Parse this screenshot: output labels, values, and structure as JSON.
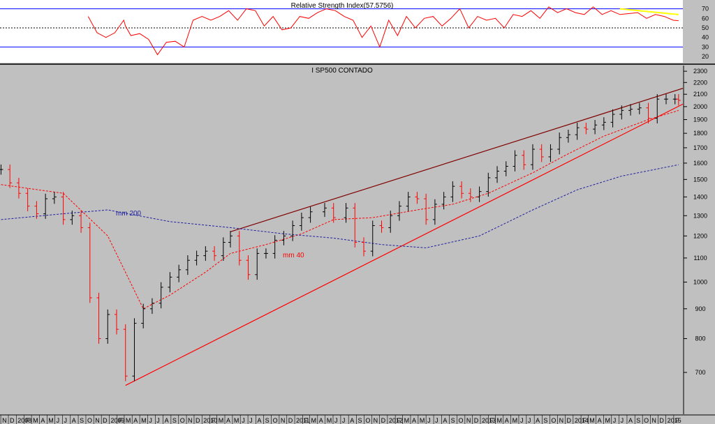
{
  "chart_data": [
    {
      "type": "line",
      "title": "Relative Strength Index(57.5756)",
      "yticks": [
        70,
        60,
        50,
        40,
        30,
        20
      ],
      "ylim": [
        15,
        77
      ],
      "reference_levels": [
        70,
        50,
        30
      ],
      "series": [
        {
          "color": "#ff0000",
          "x": [
            "2008-10-10",
            "2008-11-14",
            "2008-12-19",
            "2009-01-23",
            "2009-02-27",
            "2009-03-06",
            "2009-03-27",
            "2009-05-01",
            "2009-06-05",
            "2009-07-10",
            "2009-08-14",
            "2009-09-18",
            "2009-10-23",
            "2009-11-27",
            "2010-01-01",
            "2010-02-05",
            "2010-03-12",
            "2010-04-16",
            "2010-05-21",
            "2010-06-25",
            "2010-07-30",
            "2010-09-03",
            "2010-10-08",
            "2010-11-12",
            "2010-12-17",
            "2011-01-21",
            "2011-02-25",
            "2011-04-01",
            "2011-05-06",
            "2011-06-10",
            "2011-07-15",
            "2011-08-19",
            "2011-09-23",
            "2011-10-28",
            "2011-12-02",
            "2012-01-06",
            "2012-02-10",
            "2012-03-16",
            "2012-04-20",
            "2012-05-25",
            "2012-06-29",
            "2012-08-03",
            "2012-09-07",
            "2012-10-12",
            "2012-11-16",
            "2012-12-21",
            "2013-01-25",
            "2013-03-01",
            "2013-04-05",
            "2013-05-10",
            "2013-06-14",
            "2013-07-19",
            "2013-08-23",
            "2013-09-27",
            "2013-11-01",
            "2013-12-06",
            "2014-01-10",
            "2014-02-14",
            "2014-03-21",
            "2014-04-25",
            "2014-05-30",
            "2014-07-04",
            "2014-08-08",
            "2014-09-12",
            "2014-10-17",
            "2014-11-21",
            "2014-12-26",
            "2015-01-30",
            "2015-02-20"
          ],
          "values": [
            62,
            45,
            40,
            45,
            58,
            52,
            42,
            44,
            38,
            22,
            35,
            36,
            30,
            58,
            62,
            58,
            62,
            68,
            58,
            70,
            68,
            52,
            62,
            48,
            50,
            62,
            60,
            66,
            70,
            68,
            62,
            58,
            40,
            52,
            30,
            58,
            42,
            62,
            50,
            60,
            62,
            52,
            60,
            70,
            50,
            62,
            58,
            60,
            50,
            64,
            62,
            68,
            60,
            72,
            66,
            70,
            66,
            64,
            72,
            64,
            68,
            64,
            65,
            66,
            60,
            64,
            62,
            58,
            57.58
          ]
        }
      ],
      "trendline": {
        "color": "#ffff00",
        "from": [
          "2014-07-04",
          70
        ],
        "to": [
          "2015-02-20",
          64
        ]
      }
    },
    {
      "type": "line",
      "title": "I SP500 CONTADO",
      "yscale": "log",
      "ylim": [
        600,
        2320
      ],
      "yticks": [
        700,
        800,
        900,
        1000,
        1100,
        1200,
        1300,
        1400,
        1500,
        1600,
        1700,
        1800,
        1900,
        2000,
        2100,
        2200,
        2300
      ],
      "xlim": [
        "2007-10-29",
        "2015-03-09"
      ],
      "x_tick_labels": [
        "N",
        "D",
        "2008",
        "F",
        "M",
        "A",
        "M",
        "J",
        "J",
        "A",
        "S",
        "O",
        "N",
        "D",
        "2009",
        "F",
        "M",
        "A",
        "M",
        "J",
        "J",
        "A",
        "S",
        "O",
        "N",
        "D",
        "2010",
        "F",
        "M",
        "A",
        "M",
        "J",
        "J",
        "A",
        "S",
        "O",
        "N",
        "D",
        "2011",
        "F",
        "M",
        "A",
        "M",
        "J",
        "J",
        "A",
        "S",
        "O",
        "N",
        "D",
        "2012",
        "F",
        "M",
        "A",
        "M",
        "J",
        "J",
        "A",
        "S",
        "O",
        "N",
        "D",
        "2013",
        "F",
        "M",
        "A",
        "M",
        "J",
        "J",
        "A",
        "S",
        "O",
        "N",
        "D",
        "2014",
        "F",
        "M",
        "A",
        "M",
        "J",
        "J",
        "A",
        "S",
        "O",
        "N",
        "D",
        "2015",
        "F"
      ],
      "grid": false,
      "price": {
        "up_color": "#000000",
        "down_color": "#ff0000",
        "x": [
          "2007-11-02",
          "2007-12-07",
          "2008-01-11",
          "2008-02-15",
          "2008-03-21",
          "2008-04-25",
          "2008-05-30",
          "2008-07-04",
          "2008-08-08",
          "2008-09-12",
          "2008-10-17",
          "2008-11-21",
          "2008-12-26",
          "2009-01-30",
          "2009-03-06",
          "2009-04-10",
          "2009-05-15",
          "2009-06-19",
          "2009-07-24",
          "2009-08-28",
          "2009-10-02",
          "2009-11-06",
          "2009-12-11",
          "2010-01-15",
          "2010-02-19",
          "2010-03-26",
          "2010-04-23",
          "2010-05-28",
          "2010-07-02",
          "2010-08-06",
          "2010-09-10",
          "2010-10-15",
          "2010-11-19",
          "2010-12-24",
          "2011-01-28",
          "2011-03-04",
          "2011-04-29",
          "2011-06-03",
          "2011-07-22",
          "2011-08-26",
          "2011-09-30",
          "2011-11-04",
          "2011-12-09",
          "2012-01-13",
          "2012-02-17",
          "2012-03-23",
          "2012-04-27",
          "2012-06-01",
          "2012-07-06",
          "2012-08-10",
          "2012-09-14",
          "2012-10-19",
          "2012-11-23",
          "2012-12-28",
          "2013-02-01",
          "2013-03-08",
          "2013-04-12",
          "2013-05-17",
          "2013-06-21",
          "2013-07-26",
          "2013-08-30",
          "2013-10-04",
          "2013-11-08",
          "2013-12-13",
          "2014-01-17",
          "2014-02-21",
          "2014-03-28",
          "2014-05-02",
          "2014-06-06",
          "2014-07-11",
          "2014-08-15",
          "2014-09-19",
          "2014-10-24",
          "2014-11-28",
          "2015-01-02",
          "2015-02-06",
          "2015-02-20"
        ],
        "values": [
          1560,
          1480,
          1420,
          1350,
          1310,
          1390,
          1400,
          1280,
          1300,
          1240,
          940,
          800,
          880,
          830,
          690,
          850,
          900,
          920,
          980,
          1020,
          1050,
          1090,
          1110,
          1130,
          1110,
          1170,
          1200,
          1090,
          1030,
          1120,
          1120,
          1180,
          1200,
          1250,
          1290,
          1320,
          1340,
          1290,
          1340,
          1170,
          1130,
          1250,
          1240,
          1300,
          1350,
          1400,
          1390,
          1280,
          1360,
          1400,
          1460,
          1420,
          1400,
          1430,
          1510,
          1550,
          1580,
          1650,
          1590,
          1690,
          1640,
          1690,
          1770,
          1790,
          1840,
          1830,
          1860,
          1880,
          1940,
          1970,
          1980,
          1990,
          1910,
          2060,
          2060,
          2060,
          2050
        ]
      },
      "moving_averages": [
        {
          "name": "mm 40",
          "color": "#ff0000",
          "style": "dashed",
          "x": [
            "2007-11-02",
            "2008-07-04",
            "2008-12-26",
            "2009-05-15",
            "2009-08-28",
            "2010-01-15",
            "2010-04-23",
            "2010-09-10",
            "2011-01-28",
            "2011-06-03",
            "2011-11-04",
            "2012-04-27",
            "2012-09-14",
            "2013-02-01",
            "2013-07-26",
            "2013-12-13",
            "2014-05-02",
            "2014-10-24",
            "2015-02-20"
          ],
          "values": [
            1470,
            1420,
            1200,
            900,
            950,
            1040,
            1120,
            1160,
            1210,
            1280,
            1290,
            1330,
            1360,
            1420,
            1540,
            1660,
            1780,
            1900,
            1970
          ]
        },
        {
          "name": "mm 200",
          "color": "#2020a0",
          "style": "dashed",
          "x": [
            "2007-11-02",
            "2008-07-04",
            "2008-12-26",
            "2009-08-28",
            "2010-04-23",
            "2010-11-19",
            "2011-06-03",
            "2011-12-09",
            "2012-06-01",
            "2012-12-28",
            "2013-07-26",
            "2014-01-17",
            "2014-07-11",
            "2015-02-20"
          ],
          "values": [
            1280,
            1310,
            1330,
            1270,
            1240,
            1210,
            1190,
            1160,
            1145,
            1200,
            1330,
            1440,
            1520,
            1590
          ]
        }
      ],
      "trendlines": [
        {
          "color": "#800000",
          "from": [
            "2010-04-23",
            1220
          ],
          "to": [
            "2015-03-09",
            2150
          ]
        },
        {
          "color": "#ff0000",
          "from": [
            "2009-03-06",
            665
          ],
          "to": [
            "2015-03-09",
            2020
          ]
        }
      ]
    }
  ]
}
